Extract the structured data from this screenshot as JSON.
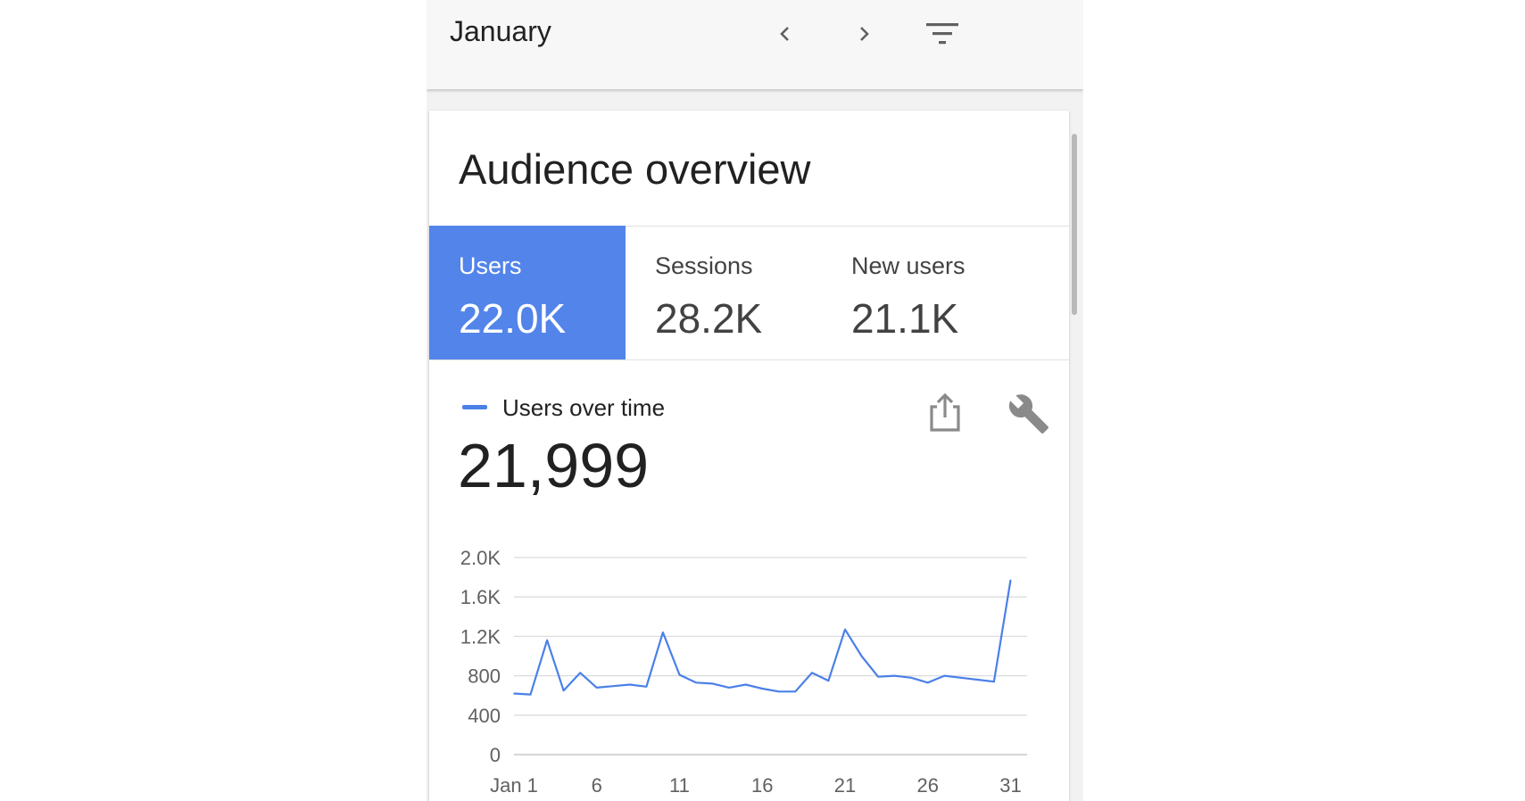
{
  "header": {
    "title": "January",
    "prev_icon": "chevron-left-icon",
    "next_icon": "chevron-right-icon",
    "filter_icon": "filter-icon"
  },
  "card": {
    "title": "Audience overview",
    "metrics": [
      {
        "label": "Users",
        "value": "22.0K",
        "selected": true
      },
      {
        "label": "Sessions",
        "value": "28.2K",
        "selected": false
      },
      {
        "label": "New users",
        "value": "21.1K",
        "selected": false
      }
    ],
    "legend_label": "Users over time",
    "total": "21,999",
    "share_icon": "share-icon",
    "customize_icon": "wrench-icon"
  },
  "colors": {
    "accent": "#5284ea",
    "line": "#4a80e8"
  },
  "chart_data": {
    "type": "line",
    "series": [
      {
        "name": "Users over time",
        "x": [
          1,
          2,
          3,
          4,
          5,
          6,
          7,
          8,
          9,
          10,
          11,
          12,
          13,
          14,
          15,
          16,
          17,
          18,
          19,
          20,
          21,
          22,
          23,
          24,
          25,
          26,
          27,
          28,
          29,
          30,
          31
        ],
        "values": [
          620,
          610,
          1160,
          650,
          830,
          680,
          695,
          710,
          690,
          1240,
          810,
          730,
          720,
          680,
          710,
          670,
          640,
          640,
          830,
          750,
          1270,
          1000,
          790,
          800,
          780,
          730,
          800,
          780,
          760,
          740,
          1770
        ]
      }
    ],
    "y_ticks": [
      "2.0K",
      "1.6K",
      "1.2K",
      "800",
      "400",
      "0"
    ],
    "x_ticks": [
      "Jan 1",
      "6",
      "11",
      "16",
      "21",
      "26",
      "31"
    ],
    "x_tick_values": [
      1,
      6,
      11,
      16,
      21,
      26,
      31
    ],
    "ylim": [
      0,
      2000
    ],
    "xlim": [
      1,
      32
    ],
    "grid": true
  }
}
